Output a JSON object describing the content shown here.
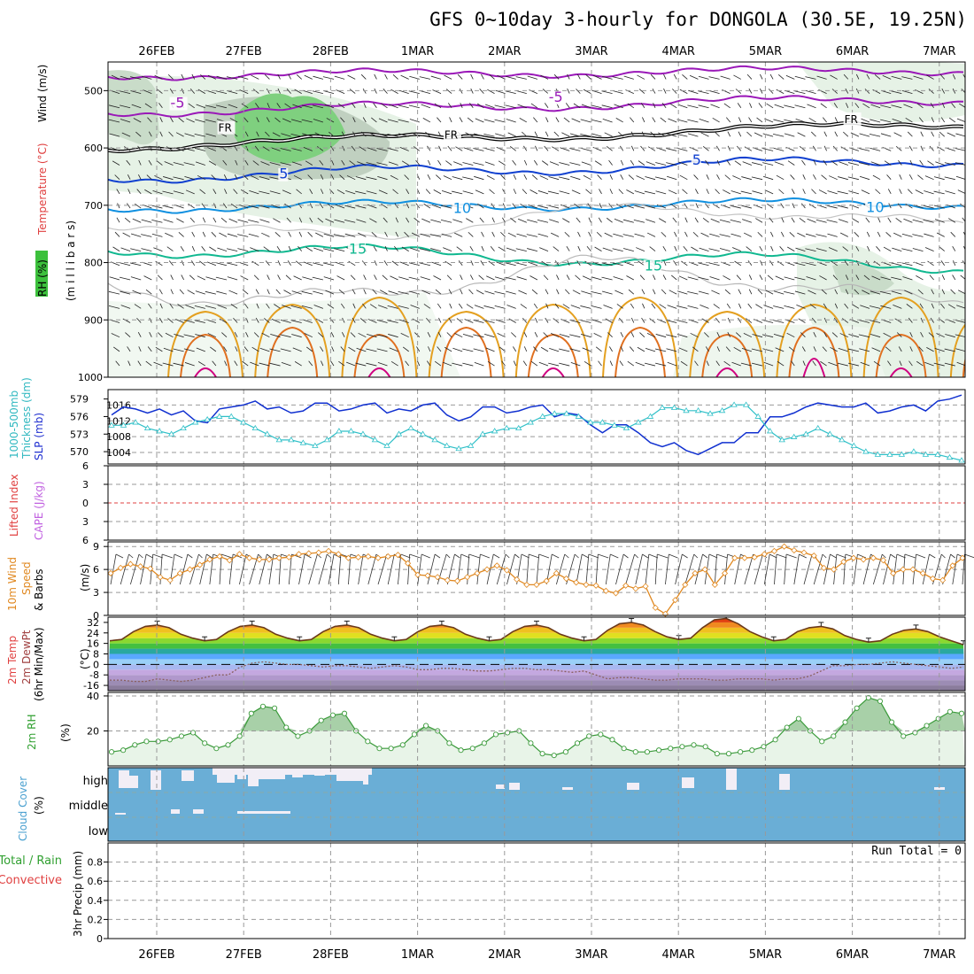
{
  "title": "GFS 0~10day 3-hourly for DONGOLA (30.5E, 19.25N)",
  "dates": [
    "26FEB",
    "27FEB",
    "28FEB",
    "1MAR",
    "2MAR",
    "3MAR",
    "4MAR",
    "5MAR",
    "6MAR",
    "7MAR"
  ],
  "colors": {
    "rh_green": "#7fd07f",
    "purple": "#9a18b8",
    "blue": "#1040d0",
    "cyan_blue": "#1090e0",
    "teal": "#10b890",
    "orange": "#e09010",
    "magenta": "#d00080",
    "slp": "#1030d0",
    "thickness": "#30c0c8",
    "cloud": "#6aaed6",
    "rh2m": "#3a9a3a",
    "wind10m": "#e08820"
  },
  "labels": {
    "upper": {
      "rh": "RH (%)",
      "temp": "Temperature (°C)",
      "wind": "Wind (m/s)",
      "axis": "(m i l l i b a r s)"
    },
    "slp": {
      "thickness": "1000-500mb",
      "thickness2": "Thickness (dm)",
      "slp": "SLP (mb)"
    },
    "cape": {
      "li": "Lifted Index",
      "cape": "CAPE (J/kg)"
    },
    "wind": {
      "a": "10m Wind",
      "b": "Speed",
      "c": "& Barbs",
      "unit": "(m/s)"
    },
    "temp": {
      "a": "2m Temp",
      "b": "2m DewPt",
      "c": "(6hr Min/Max)",
      "unit": "(°C)"
    },
    "rh2m": {
      "a": "2m RH",
      "unit": "(%)"
    },
    "cloud": {
      "a": "Cloud Cover",
      "unit": "(%)",
      "high": "high",
      "middle": "middle",
      "low": "low"
    },
    "precip": {
      "a": "Total / Rain",
      "b": "Convective",
      "c": "3hr Precip (mm)",
      "run_total": "Run Total = 0"
    }
  },
  "chart_data": [
    {
      "type": "contour",
      "name": "upper",
      "ylabel": "(millibars)",
      "yticks": [
        500,
        600,
        700,
        800,
        900,
        1000
      ],
      "ylim": [
        1000,
        450
      ],
      "contour_labels": [
        {
          "text": "-5",
          "day": 0.25,
          "p": 528
        },
        {
          "text": "-5",
          "day": 4.6,
          "p": 518
        },
        {
          "text": "FR",
          "day": 0.8,
          "p": 570
        },
        {
          "text": "FR",
          "day": 3.4,
          "p": 582
        },
        {
          "text": "FR",
          "day": 8.0,
          "p": 555
        },
        {
          "text": "5",
          "day": 1.5,
          "p": 652
        },
        {
          "text": "5",
          "day": 6.25,
          "p": 628
        },
        {
          "text": "10",
          "day": 3.5,
          "p": 712
        },
        {
          "text": "10",
          "day": 8.25,
          "p": 710
        },
        {
          "text": "15",
          "day": 2.3,
          "p": 783
        },
        {
          "text": "15",
          "day": 5.7,
          "p": 812
        }
      ]
    },
    {
      "type": "line",
      "name": "slp-thickness",
      "yticks_left": [
        570,
        573,
        576,
        579
      ],
      "yticks_right": [
        1004,
        1008,
        1012,
        1016
      ],
      "series": [
        {
          "name": "SLP (mb)",
          "values": [
            1013.5,
            1015.5,
            1015,
            1014,
            1015,
            1013.5,
            1014.5,
            1012,
            1011.5,
            1015,
            1015.5,
            1016,
            1017,
            1015,
            1015.5,
            1014,
            1014.5,
            1016.5,
            1016.5,
            1014.5,
            1015,
            1016,
            1016.5,
            1014,
            1015,
            1014.5,
            1016,
            1016.5,
            1013.5,
            1012,
            1013,
            1015.5,
            1015.5,
            1014,
            1014.5,
            1015.5,
            1016,
            1013,
            1014,
            1013.5,
            1011,
            1009,
            1011,
            1011,
            1009,
            1006.5,
            1005.5,
            1006.5,
            1004.5,
            1003.5,
            1005,
            1006.5,
            1006.5,
            1009,
            1009,
            1013,
            1013,
            1014,
            1015.5,
            1016.5,
            1016,
            1015.5,
            1015.5,
            1016.5,
            1014,
            1014.5,
            1015.5,
            1016,
            1014.5,
            1017,
            1017.5,
            1018.5
          ]
        },
        {
          "name": "1000-500mb Thickness (dm)",
          "values": [
            574.5,
            574.5,
            575,
            574,
            573.5,
            573,
            574,
            575,
            575.5,
            576,
            576,
            575,
            574,
            573,
            572,
            572,
            571.5,
            571,
            572,
            573.5,
            573.5,
            573,
            572,
            571,
            573,
            574,
            573,
            572,
            571,
            570.5,
            571,
            573,
            573.5,
            574,
            574,
            575,
            576,
            576.5,
            576.5,
            576,
            575,
            575,
            574.5,
            574,
            575,
            576,
            577.5,
            577.5,
            577,
            577,
            576.5,
            577,
            578,
            578,
            576,
            573.5,
            572,
            572.5,
            573,
            574,
            573,
            572,
            571,
            570,
            569.5,
            569.5,
            569.5,
            570,
            569.5,
            569.5,
            569,
            568.5
          ]
        }
      ]
    },
    {
      "type": "line",
      "name": "lifted-index-cape",
      "yticks": [
        -6,
        -3,
        0,
        3,
        6
      ],
      "ylim": [
        -6,
        6
      ]
    },
    {
      "type": "line",
      "name": "10m-wind",
      "yticks": [
        0,
        3,
        6,
        9
      ],
      "ylim": [
        0,
        9
      ],
      "series": [
        {
          "name": "10m Wind Speed",
          "values": [
            5.5,
            6.2,
            6.7,
            6.4,
            6.1,
            5,
            4.6,
            5.5,
            6,
            6.6,
            7.3,
            7.7,
            7.2,
            8,
            7.5,
            7.3,
            7.3,
            7.5,
            7.6,
            8,
            8.1,
            8.2,
            8.4,
            8,
            7.5,
            7.6,
            7.7,
            7.5,
            7.7,
            7.9,
            6.8,
            5.3,
            5.2,
            5,
            4.6,
            4.5,
            5,
            5.5,
            6,
            6.5,
            5.9,
            4.7,
            4,
            4,
            4.5,
            5.5,
            4.8,
            4.3,
            4,
            3.9,
            3.2,
            2.9,
            3.9,
            3.5,
            3.8,
            1,
            0.2,
            2,
            4,
            5.5,
            6,
            4,
            5.5,
            7.5,
            7.5,
            7.6,
            8,
            8.4,
            9,
            8.5,
            8.2,
            7.8,
            6.2,
            6,
            7,
            7.5,
            7.3,
            7.5,
            7.2,
            5.5,
            6,
            6,
            5.5,
            4.8,
            4.6,
            6.5,
            7.5
          ]
        }
      ]
    },
    {
      "type": "area",
      "name": "2m-temp-dewpt",
      "yticks": [
        -16,
        -8,
        0,
        8,
        16,
        24,
        32
      ],
      "ylim": [
        -20,
        36
      ],
      "series": [
        {
          "name": "2m Temp",
          "values": [
            18,
            19,
            25,
            29,
            30,
            28,
            23,
            20,
            18,
            19,
            25,
            29,
            30,
            28,
            23,
            20,
            18,
            19,
            25,
            29,
            30,
            28,
            23,
            20,
            18,
            19,
            25,
            29,
            30,
            28,
            23,
            20,
            18,
            19,
            25,
            29,
            30,
            28,
            23,
            20,
            18,
            19,
            26,
            31,
            32,
            30,
            25,
            21,
            19,
            20,
            28,
            34,
            35,
            31,
            25,
            21,
            18,
            19,
            25,
            28,
            29,
            27,
            22,
            19,
            17,
            18,
            23,
            26,
            27,
            25,
            21,
            18,
            15
          ]
        },
        {
          "name": "2m DewPt",
          "values": [
            -12,
            -12,
            -13,
            -13,
            -11,
            -12,
            -13,
            -12,
            -10,
            -8,
            -8,
            -2,
            1,
            2,
            1,
            0,
            0,
            -1,
            -2,
            -1,
            -1,
            -2,
            -3,
            -2,
            -1,
            -2,
            -4,
            -4,
            -3,
            -3,
            -4,
            -5,
            -5,
            -4,
            -3,
            -3,
            -4,
            -4,
            -5,
            -6,
            -5,
            -8,
            -11,
            -10,
            -10,
            -11,
            -12,
            -12,
            -11,
            -11,
            -11,
            -12,
            -12,
            -11,
            -11,
            -11,
            -12,
            -11,
            -11,
            -9,
            -5,
            -1,
            -1,
            0,
            0,
            1,
            2,
            1,
            0,
            -1,
            -2,
            -3,
            -2
          ]
        }
      ]
    },
    {
      "type": "area",
      "name": "2m-rh",
      "yticks": [
        20,
        40
      ],
      "ylim": [
        0,
        40
      ],
      "series": [
        {
          "name": "2m RH",
          "values": [
            8,
            9,
            12,
            14,
            14,
            15,
            17,
            19,
            13,
            10,
            12,
            17,
            30,
            34,
            33,
            22,
            17,
            20,
            26,
            29,
            30,
            20,
            14,
            10,
            10,
            12,
            18,
            23,
            20,
            13,
            9,
            10,
            13,
            18,
            19,
            20,
            13,
            7,
            6,
            8,
            13,
            17,
            18,
            15,
            10,
            8,
            8,
            9,
            10,
            11,
            12,
            11,
            7,
            7,
            8,
            9,
            11,
            15,
            22,
            27,
            20,
            14,
            17,
            25,
            33,
            39,
            37,
            25,
            17,
            19,
            23,
            27,
            31,
            30
          ]
        }
      ]
    },
    {
      "type": "bar",
      "name": "cloud-cover",
      "categories": [
        "high",
        "middle",
        "low"
      ]
    },
    {
      "type": "bar",
      "name": "3hr-precip",
      "yticks": [
        0,
        0.2,
        0.4,
        0.6,
        0.8
      ],
      "ylim": [
        0,
        1
      ],
      "values": []
    }
  ]
}
